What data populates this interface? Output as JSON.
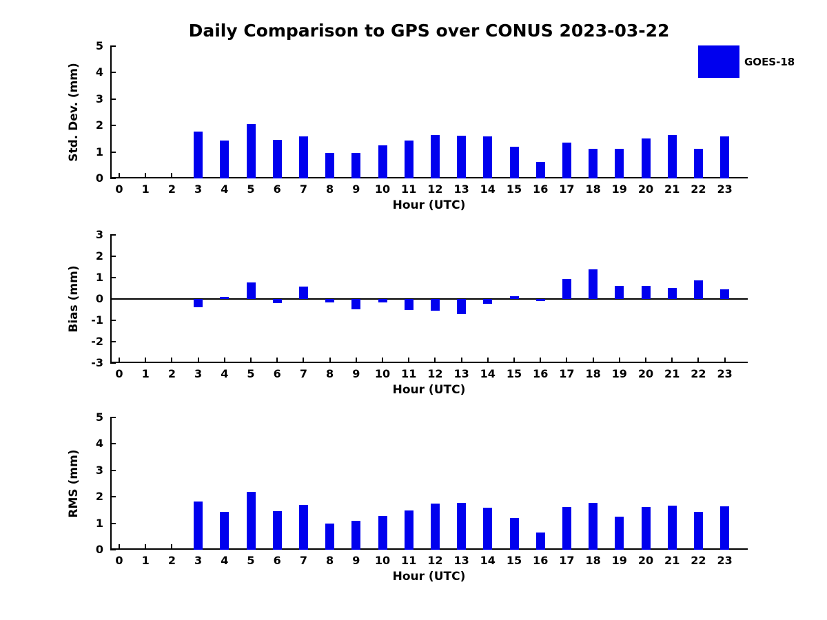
{
  "title": "Daily Comparison to GPS over CONUS 2023-03-22",
  "legend": {
    "label": "GOES-18",
    "color": "#0000ee",
    "position": "top-right"
  },
  "chart_data": [
    {
      "type": "bar",
      "name": "std_dev",
      "series_name": "GOES-18",
      "ylabel": "Std. Dev. (mm)",
      "xlabel": "Hour (UTC)",
      "ylim": [
        0,
        5
      ],
      "yticks": [
        0,
        1,
        2,
        3,
        4,
        5
      ],
      "grid": false,
      "x": [
        0,
        1,
        2,
        3,
        4,
        5,
        6,
        7,
        8,
        9,
        10,
        11,
        12,
        13,
        14,
        15,
        16,
        17,
        18,
        19,
        20,
        21,
        22,
        23
      ],
      "values": [
        0,
        0,
        0,
        1.78,
        1.42,
        2.05,
        1.45,
        1.6,
        0.97,
        0.97,
        1.26,
        1.42,
        1.65,
        1.62,
        1.6,
        1.21,
        0.63,
        1.36,
        1.13,
        1.13,
        1.52,
        1.63,
        1.13,
        1.6
      ]
    },
    {
      "type": "bar",
      "name": "bias",
      "series_name": "GOES-18",
      "ylabel": "Bias (mm)",
      "xlabel": "Hour (UTC)",
      "ylim": [
        -3,
        3
      ],
      "yticks": [
        3,
        2,
        1,
        0,
        -1,
        -2,
        -3
      ],
      "grid": false,
      "x": [
        0,
        1,
        2,
        3,
        4,
        5,
        6,
        7,
        8,
        9,
        10,
        11,
        12,
        13,
        14,
        15,
        16,
        17,
        18,
        19,
        20,
        21,
        22,
        23
      ],
      "values": [
        0,
        0,
        0,
        -0.4,
        0.1,
        0.79,
        -0.18,
        0.57,
        -0.17,
        -0.47,
        -0.16,
        -0.52,
        -0.56,
        -0.7,
        -0.22,
        0.13,
        -0.1,
        0.95,
        1.4,
        0.6,
        0.62,
        0.52,
        0.88,
        0.45
      ]
    },
    {
      "type": "bar",
      "name": "rms",
      "series_name": "GOES-18",
      "ylabel": "RMS (mm)",
      "xlabel": "Hour (UTC)",
      "ylim": [
        0,
        5
      ],
      "yticks": [
        0,
        1,
        2,
        3,
        4,
        5
      ],
      "grid": false,
      "x": [
        0,
        1,
        2,
        3,
        4,
        5,
        6,
        7,
        8,
        9,
        10,
        11,
        12,
        13,
        14,
        15,
        16,
        17,
        18,
        19,
        20,
        21,
        22,
        23
      ],
      "values": [
        0,
        0,
        0,
        1.82,
        1.44,
        2.2,
        1.47,
        1.68,
        0.99,
        1.09,
        1.27,
        1.49,
        1.74,
        1.77,
        1.6,
        1.2,
        0.64,
        1.62,
        1.78,
        1.25,
        1.61,
        1.66,
        1.42,
        1.63
      ]
    }
  ]
}
